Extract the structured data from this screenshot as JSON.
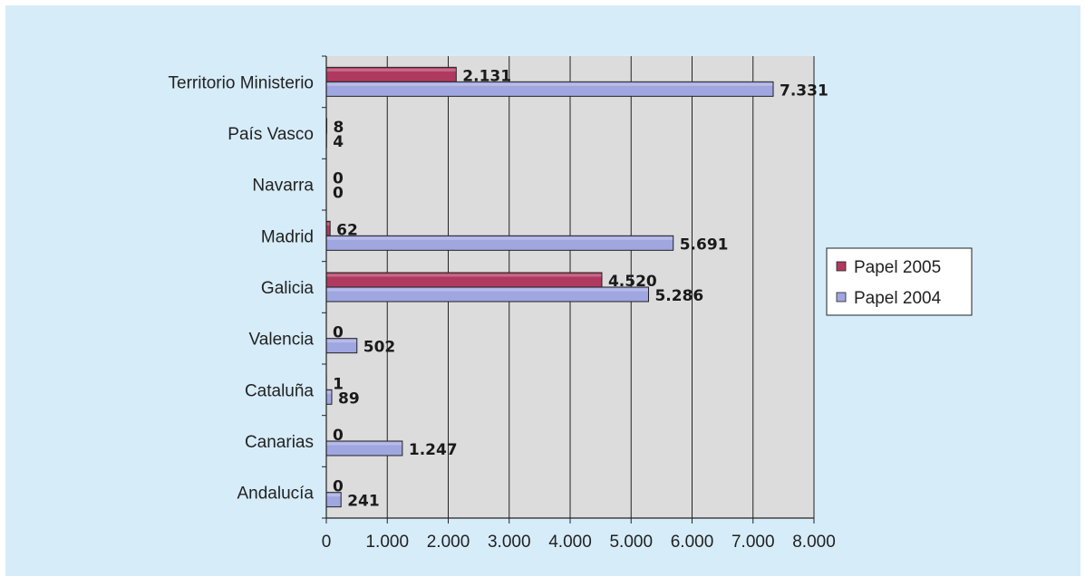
{
  "chart_data": {
    "type": "bar",
    "orientation": "horizontal",
    "categories": [
      "Territorio Ministerio",
      "País Vasco",
      "Navarra",
      "Madrid",
      "Galicia",
      "Valencia",
      "Cataluña",
      "Canarias",
      "Andalucía"
    ],
    "series": [
      {
        "name": "Papel 2005",
        "color": "#b03a5f",
        "values": [
          2131,
          8,
          0,
          62,
          4520,
          0,
          1,
          0,
          0
        ],
        "labels": [
          "2.131",
          "8",
          "0",
          "62",
          "4.520",
          "0",
          "1",
          "0",
          "0"
        ]
      },
      {
        "name": "Papel 2004",
        "color": "#9fa6e0",
        "values": [
          7331,
          4,
          0,
          5691,
          5286,
          502,
          89,
          1247,
          241
        ],
        "labels": [
          "7.331",
          "4",
          "0",
          "5.691",
          "5.286",
          "502",
          "89",
          "1.247",
          "241"
        ]
      }
    ],
    "xlim": [
      0,
      8000
    ],
    "x_ticks": [
      0,
      1000,
      2000,
      3000,
      4000,
      5000,
      6000,
      7000,
      8000
    ],
    "x_tick_labels": [
      "0",
      "1.000",
      "2.000",
      "3.000",
      "4.000",
      "5.000",
      "6.000",
      "7.000",
      "8.000"
    ],
    "grid": true,
    "legend_position": "right",
    "plot_background": "#dcdcdc",
    "title": "",
    "xlabel": "",
    "ylabel": ""
  }
}
